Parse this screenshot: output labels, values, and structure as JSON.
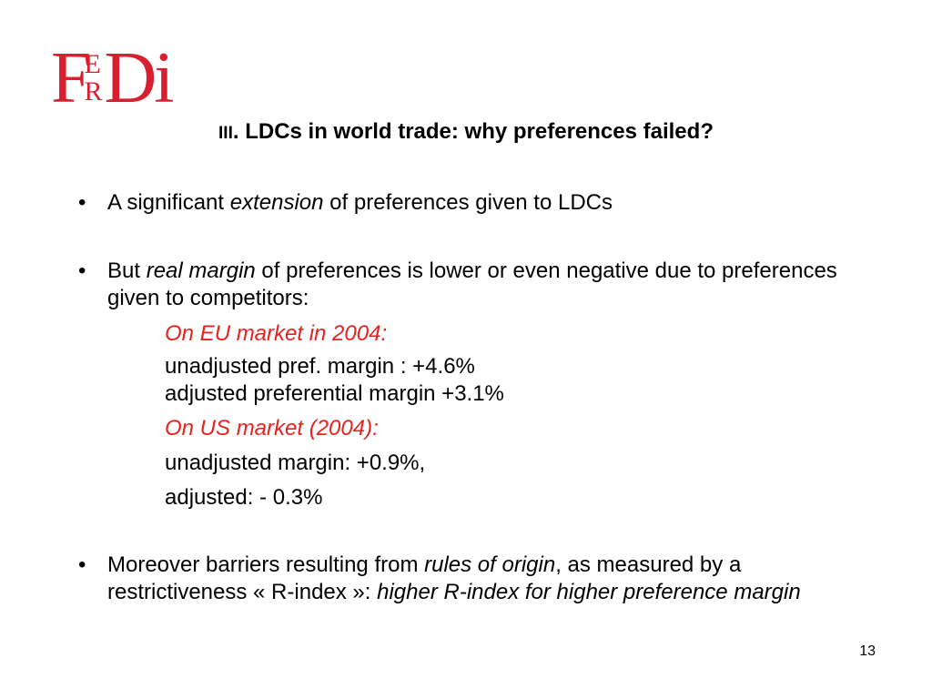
{
  "logo": {
    "text_f": "F",
    "text_e": "E",
    "text_r": "R",
    "text_di": "Di"
  },
  "title": {
    "roman": "III",
    "text": ". LDCs in world trade: why preferences failed?"
  },
  "bullets": [
    {
      "marker": "•",
      "pre": "A significant ",
      "em": "extension",
      "post": " of preferences given to LDCs"
    },
    {
      "marker": "•",
      "pre": "But ",
      "em": "real margin",
      "post": " of preferences is lower or even negative due to preferences given to competitors:"
    },
    {
      "marker": "•",
      "pre": "Moreover barriers resulting from ",
      "em": "rules of origin",
      "mid": ", as measured by a restrictiveness « R-index »: ",
      "em2": "higher R-index for higher preference margin"
    }
  ],
  "eu": {
    "heading": "On EU market in 2004:",
    "line1": "unadjusted pref. margin : +4.6%",
    "line2": "adjusted preferential margin +3.1%"
  },
  "us": {
    "heading": "On US market (2004):",
    "line1": "unadjusted margin: +0.9%,",
    "line2": "adjusted: - 0.3%"
  },
  "page_number": "13",
  "colors": {
    "logo": "#d71f30",
    "accent_red": "#e5231f"
  }
}
